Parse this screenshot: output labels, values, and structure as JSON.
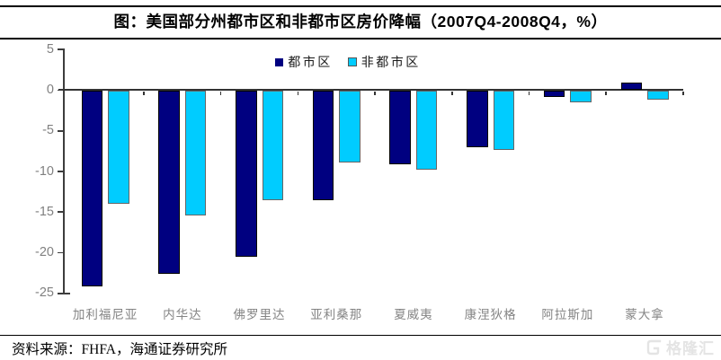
{
  "header": {
    "title": "图：美国部分州都市区和非都市区房价降幅（2007Q4-2008Q4，%）"
  },
  "legend": {
    "metro_label": "都市区",
    "nonmetro_label": "非都市区"
  },
  "footer": {
    "source": "资料来源：FHFA，海通证券研究所",
    "watermark": "格隆汇"
  },
  "colors": {
    "metro": "#000080",
    "nonmetro": "#00CCFF",
    "axis": "#333333",
    "tick_label": "#808080",
    "rule": "#000000",
    "watermark": "#e4e4e4"
  },
  "chart_data": {
    "type": "bar",
    "title": "美国部分州都市区和非都市区房价降幅（2007Q4-2008Q4，%）",
    "categories": [
      "加利福尼亚",
      "内华达",
      "佛罗里达",
      "亚利桑那",
      "夏威夷",
      "康涅狄格",
      "阿拉斯加",
      "蒙大拿"
    ],
    "series": [
      {
        "name": "都市区",
        "color": "#000080",
        "border": "#000000",
        "values": [
          -24.1,
          -22.5,
          -20.4,
          -13.5,
          -9.0,
          -6.9,
          -0.7,
          0.8
        ]
      },
      {
        "name": "非都市区",
        "color": "#00CCFF",
        "border": "#666666",
        "values": [
          -13.9,
          -15.3,
          -13.5,
          -8.8,
          -9.7,
          -7.3,
          -1.4,
          -1.1
        ]
      }
    ],
    "xlabel": "",
    "ylabel": "",
    "ylim": [
      -25,
      5
    ],
    "yticks": [
      5,
      0,
      -5,
      -10,
      -15,
      -20,
      -25
    ],
    "grid": false,
    "legend_position": "top"
  }
}
